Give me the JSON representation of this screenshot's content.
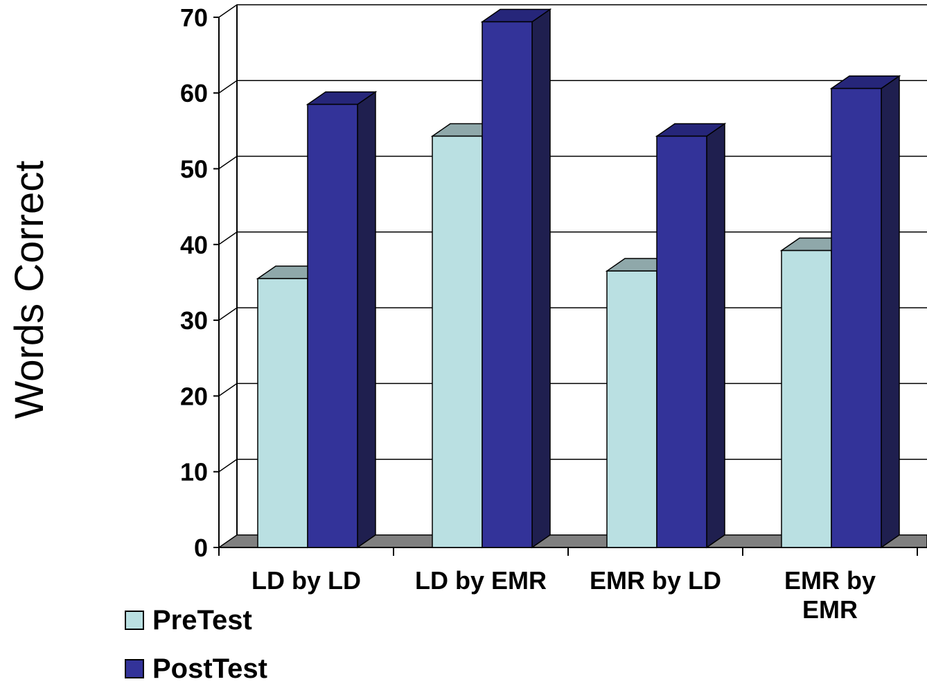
{
  "chart_data": {
    "type": "bar",
    "ylabel": "Words Correct",
    "xlabel": "",
    "ylim": [
      0,
      70
    ],
    "yticks": [
      0,
      10,
      20,
      30,
      40,
      50,
      60,
      70
    ],
    "grid": true,
    "three_d": true,
    "legend_position": "bottom-left",
    "categories": [
      [
        "LD by LD"
      ],
      [
        "LD by EMR"
      ],
      [
        "EMR by LD"
      ],
      [
        "EMR by",
        "EMR"
      ]
    ],
    "series": [
      {
        "name": "PreTest",
        "values": [
          35.5,
          54.3,
          36.5,
          39.2
        ],
        "color": "#bae0e2",
        "top_color": "#8fa8aa",
        "side_color": "#5e7c80"
      },
      {
        "name": "PostTest",
        "values": [
          58.5,
          69.4,
          54.3,
          60.6
        ],
        "color": "#333399",
        "top_color": "#26267a",
        "side_color": "#1f1f4f"
      }
    ]
  }
}
